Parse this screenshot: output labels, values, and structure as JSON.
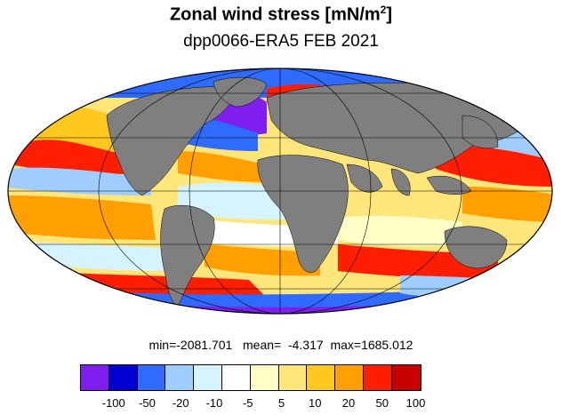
{
  "header": {
    "title_main": "Zonal wind stress [mN/m",
    "title_sup": "2",
    "title_end": "]",
    "subtitle": "dpp0066-ERA5  FEB 2021"
  },
  "stats": {
    "text": "min=-2081.701   mean=  -4.317  max=1685.012"
  },
  "colorbar": {
    "colors": [
      "#7f1fef",
      "#0000d0",
      "#2f6bff",
      "#9fcdff",
      "#d6f4ff",
      "#ffffff",
      "#ffffc8",
      "#ffe67a",
      "#ffc81e",
      "#ffa000",
      "#ff1e00",
      "#c80000"
    ],
    "ticks": [
      "-100",
      "-50",
      "-20",
      "-10",
      "-5",
      "5",
      "10",
      "20",
      "50",
      "100"
    ]
  },
  "map": {
    "projection": "Mollweide",
    "land_color": "#7f7f7f",
    "grid": true
  }
}
